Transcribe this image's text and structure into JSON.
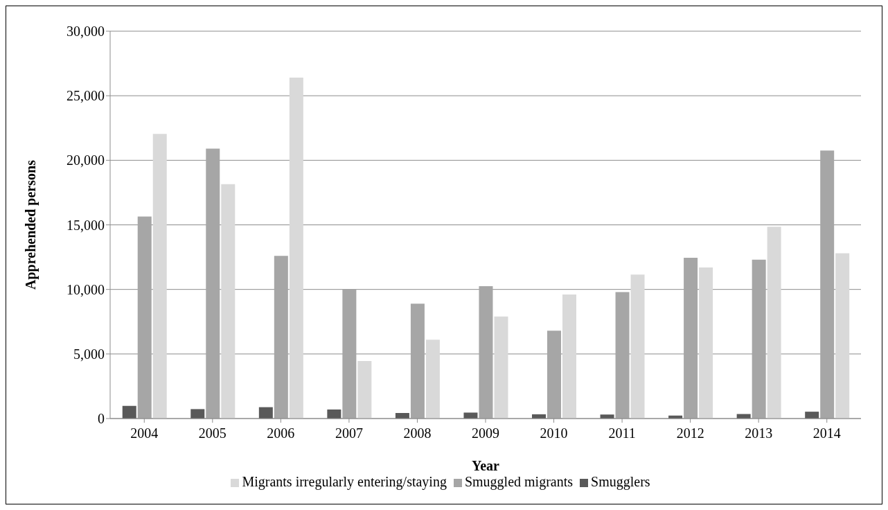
{
  "chart_data": {
    "type": "bar",
    "xlabel": "Year",
    "ylabel": "Apprehended persons",
    "categories": [
      "2004",
      "2005",
      "2006",
      "2007",
      "2008",
      "2009",
      "2010",
      "2011",
      "2012",
      "2013",
      "2014"
    ],
    "series": [
      {
        "name": "Smugglers",
        "color": "#595959",
        "values": [
          980,
          730,
          880,
          700,
          430,
          460,
          330,
          310,
          230,
          350,
          530
        ]
      },
      {
        "name": "Smuggled migrants",
        "color": "#a6a6a6",
        "values": [
          15650,
          20900,
          12600,
          10000,
          8900,
          10250,
          6800,
          9800,
          12450,
          12300,
          20750
        ]
      },
      {
        "name": "Migrants irregularly entering/staying",
        "color": "#d9d9d9",
        "values": [
          22050,
          18150,
          26400,
          4450,
          6100,
          7900,
          9600,
          11150,
          11700,
          14850,
          12800
        ]
      }
    ],
    "ylim": [
      0,
      30000
    ],
    "yticks": [
      {
        "value": 0,
        "label": "0"
      },
      {
        "value": 5000,
        "label": "5,000"
      },
      {
        "value": 10000,
        "label": "10,000"
      },
      {
        "value": 15000,
        "label": "15,000"
      },
      {
        "value": 20000,
        "label": "20,000"
      },
      {
        "value": 25000,
        "label": "25,000"
      },
      {
        "value": 30000,
        "label": "30,000"
      }
    ],
    "grid": "y",
    "legend": "bottom"
  }
}
